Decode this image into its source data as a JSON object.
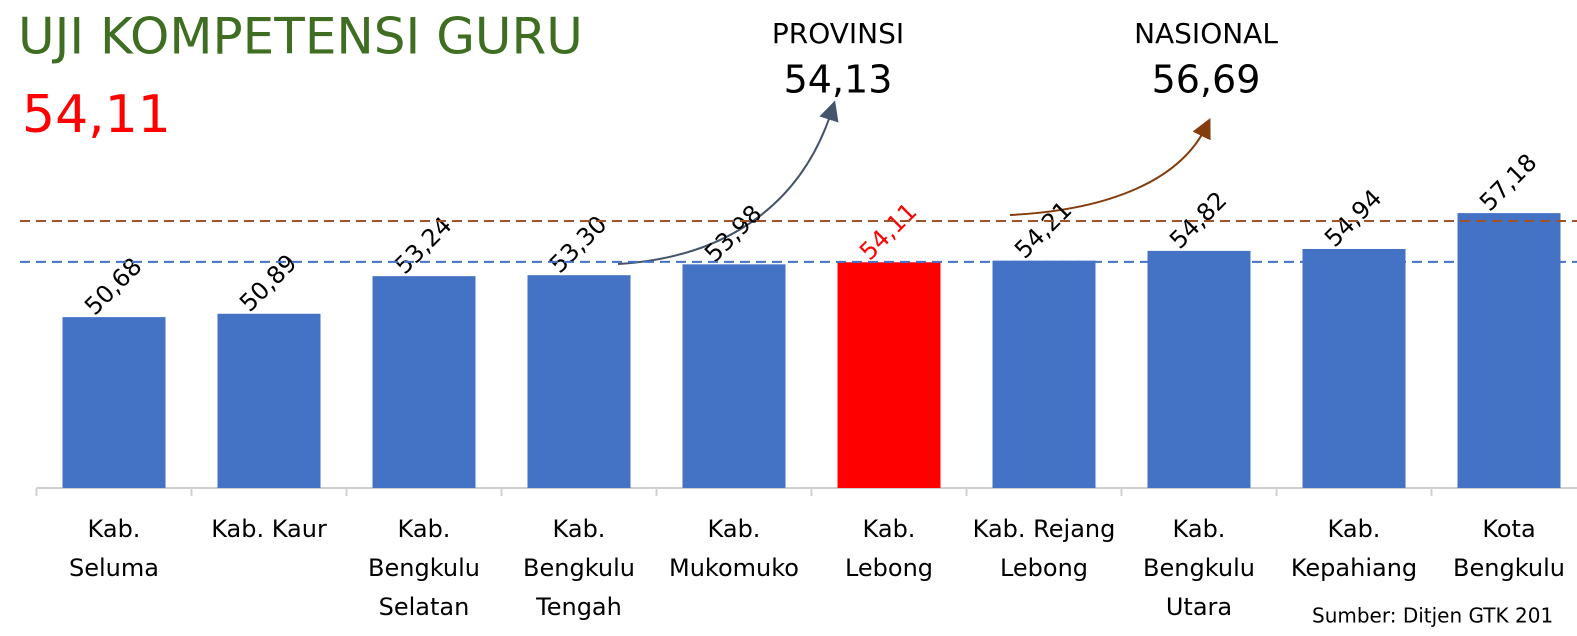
{
  "chart_data": {
    "type": "bar",
    "title": "UJI KOMPETENSI GURU",
    "subtitle": "54,11",
    "categories": [
      [
        "Kab.",
        "Seluma"
      ],
      [
        "Kab. Kaur"
      ],
      [
        "Kab.",
        "Bengkulu",
        "Selatan"
      ],
      [
        "Kab.",
        "Bengkulu",
        "Tengah"
      ],
      [
        "Kab.",
        "Mukomuko"
      ],
      [
        "Kab.",
        "Lebong"
      ],
      [
        "Kab. Rejang",
        "Lebong"
      ],
      [
        "Kab.",
        "Bengkulu",
        "Utara"
      ],
      [
        "Kab.",
        "Kepahiang"
      ],
      [
        "Kota",
        "Bengkulu"
      ]
    ],
    "values": [
      50.68,
      50.89,
      53.24,
      53.3,
      53.98,
      54.11,
      54.21,
      54.82,
      54.94,
      57.18
    ],
    "value_labels": [
      "50,68",
      "50,89",
      "53,24",
      "53,30",
      "53,98",
      "54,11",
      "54,21",
      "54,82",
      "54,94",
      "57,18"
    ],
    "colors": [
      "#4472c4",
      "#4472c4",
      "#4472c4",
      "#4472c4",
      "#4472c4",
      "#ff0000",
      "#4472c4",
      "#4472c4",
      "#4472c4",
      "#4472c4"
    ],
    "value_label_colors": [
      "#000000",
      "#000000",
      "#000000",
      "#000000",
      "#000000",
      "#ff0000",
      "#000000",
      "#000000",
      "#000000",
      "#000000"
    ],
    "ylim": [
      40,
      60
    ],
    "reference_lines": [
      {
        "name": "PROVINSI",
        "value": 54.13,
        "label": "54,13",
        "color": "#4472c4"
      },
      {
        "name": "NASIONAL",
        "value": 56.69,
        "label": "56,69",
        "color": "#a0522d"
      }
    ],
    "source": "Sumber: Ditjen GTK 201"
  }
}
